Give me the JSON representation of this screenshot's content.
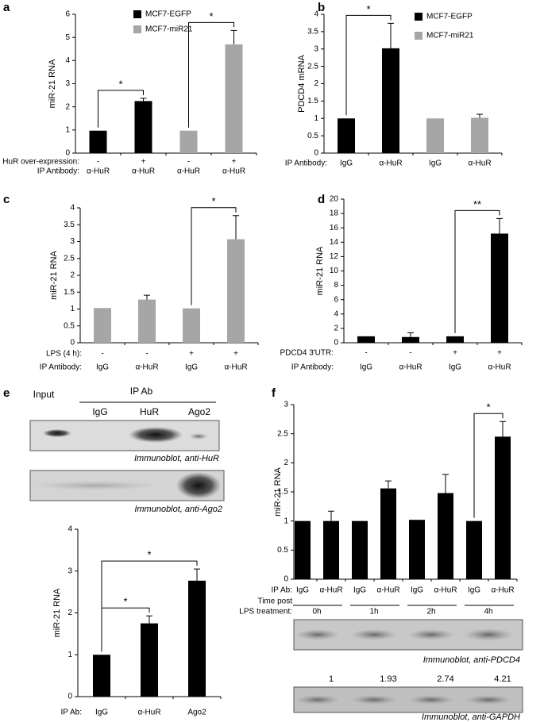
{
  "chart_data": [
    {
      "panel": "a",
      "type": "bar",
      "ylabel": "miR-21 RNA",
      "ylim": [
        0,
        6
      ],
      "yticks": [
        0,
        1,
        2,
        3,
        4,
        5,
        6
      ],
      "series": [
        {
          "name": "MCF7-EGFP",
          "color": "#000000",
          "values": [
            0.97,
            2.25,
            null,
            null
          ],
          "errors": [
            null,
            0.12,
            null,
            null
          ]
        },
        {
          "name": "MCF7-miR21",
          "color": "#a6a6a6",
          "values": [
            null,
            null,
            0.97,
            4.7
          ],
          "errors": [
            null,
            null,
            null,
            0.6
          ]
        }
      ],
      "rows": [
        {
          "label": "HuR over-expression:",
          "values": [
            "-",
            "+",
            "-",
            "+"
          ]
        },
        {
          "label": "IP Antibody:",
          "values": [
            "α-HuR",
            "α-HuR",
            "α-HuR",
            "α-HuR"
          ]
        }
      ],
      "significance": [
        {
          "text": "*",
          "from": 0,
          "to": 1
        },
        {
          "text": "*",
          "from": 2,
          "to": 3
        }
      ]
    },
    {
      "panel": "b",
      "type": "bar",
      "ylabel": "PDCD4 mRNA",
      "ylim": [
        0,
        4
      ],
      "yticks": [
        0,
        0.5,
        1,
        1.5,
        2,
        2.5,
        3,
        3.5,
        4
      ],
      "series": [
        {
          "name": "MCF7-EGFP",
          "color": "#000000",
          "values": [
            1,
            3.02,
            null,
            null
          ],
          "errors": [
            null,
            0.72,
            null,
            null
          ]
        },
        {
          "name": "MCF7-miR21",
          "color": "#a6a6a6",
          "values": [
            null,
            null,
            1,
            1.02
          ],
          "errors": [
            null,
            null,
            null,
            0.1
          ]
        }
      ],
      "rows": [
        {
          "label": "IP Antibody:",
          "values": [
            "IgG",
            "α-HuR",
            "IgG",
            "α-HuR"
          ]
        }
      ],
      "significance": [
        {
          "text": "*",
          "from": 0,
          "to": 1
        }
      ]
    },
    {
      "panel": "c",
      "type": "bar",
      "ylabel": "miR-21 RNA",
      "ylim": [
        0,
        4
      ],
      "yticks": [
        0,
        0.5,
        1,
        1.5,
        2,
        2.5,
        3,
        3.5,
        4
      ],
      "series": [
        {
          "color": "#a6a6a6",
          "values": [
            1.03,
            1.28,
            1.02,
            3.07
          ],
          "errors": [
            null,
            0.13,
            null,
            0.7
          ]
        }
      ],
      "rows": [
        {
          "label": "LPS (4 h):",
          "values": [
            "-",
            "-",
            "+",
            "+"
          ]
        },
        {
          "label": "IP Antibody:",
          "values": [
            "IgG",
            "α-HuR",
            "IgG",
            "α-HuR"
          ]
        }
      ],
      "significance": [
        {
          "text": "*",
          "from": 2,
          "to": 3
        }
      ]
    },
    {
      "panel": "d",
      "type": "bar",
      "ylabel": "miR-21 RNA",
      "ylim": [
        0,
        20
      ],
      "yticks": [
        0,
        2,
        4,
        6,
        8,
        10,
        12,
        14,
        16,
        18,
        20
      ],
      "series": [
        {
          "color": "#000000",
          "values": [
            0.9,
            0.8,
            0.9,
            15.2
          ],
          "errors": [
            null,
            0.6,
            null,
            2.1
          ]
        }
      ],
      "rows": [
        {
          "label": "PDCD4 3'UTR:",
          "values": [
            "-",
            "-",
            "+",
            "+"
          ]
        },
        {
          "label": "IP Antibody:",
          "values": [
            "IgG",
            "α-HuR",
            "IgG",
            "α-HuR"
          ]
        }
      ],
      "significance": [
        {
          "text": "**",
          "from": 2,
          "to": 3
        }
      ]
    },
    {
      "panel": "e",
      "type": "bar",
      "ylabel": "miR-21 RNA",
      "ylim": [
        0,
        4
      ],
      "yticks": [
        0,
        1,
        2,
        3,
        4
      ],
      "series": [
        {
          "color": "#000000",
          "values": [
            1,
            1.75,
            2.77
          ],
          "errors": [
            null,
            0.18,
            0.28
          ]
        }
      ],
      "rows": [
        {
          "label": "IP Ab:",
          "values": [
            "IgG",
            "α-HuR",
            "Ago2"
          ]
        }
      ],
      "significance": [
        {
          "text": "*",
          "from": 0,
          "to": 1
        },
        {
          "text": "*",
          "from": 0,
          "to": 2
        }
      ],
      "blot": {
        "header": "Input",
        "group": "IP Ab",
        "lanes": [
          "IgG",
          "HuR",
          "Ago2"
        ],
        "captions": [
          "Immunoblot, anti-HuR",
          "Immunoblot, anti-Ago2"
        ]
      }
    },
    {
      "panel": "f",
      "type": "bar",
      "ylabel": "miR-21 RNA",
      "ylim": [
        0,
        3
      ],
      "yticks": [
        0,
        0.5,
        1,
        1.5,
        2,
        2.5,
        3
      ],
      "series": [
        {
          "color": "#000000",
          "values": [
            1,
            1,
            1,
            1.56,
            1.02,
            1.48,
            1,
            2.45
          ],
          "errors": [
            null,
            0.17,
            null,
            0.13,
            null,
            0.32,
            null,
            0.26
          ]
        }
      ],
      "rows": [
        {
          "label": "IP Ab:",
          "values": [
            "IgG",
            "α-HuR",
            "IgG",
            "α-HuR",
            "IgG",
            "α-HuR",
            "IgG",
            "α-HuR"
          ]
        }
      ],
      "significance": [
        {
          "text": "*",
          "from": 6,
          "to": 7
        }
      ],
      "group_label": [
        "Time post",
        "LPS treatment:"
      ],
      "groups": [
        "0h",
        "1h",
        "2h",
        "4h"
      ],
      "blot_captions": [
        "Immunoblot, anti-PDCD4",
        "Immunoblot, anti-GAPDH"
      ],
      "blot_values": [
        1,
        1.93,
        2.74,
        4.21
      ]
    }
  ]
}
